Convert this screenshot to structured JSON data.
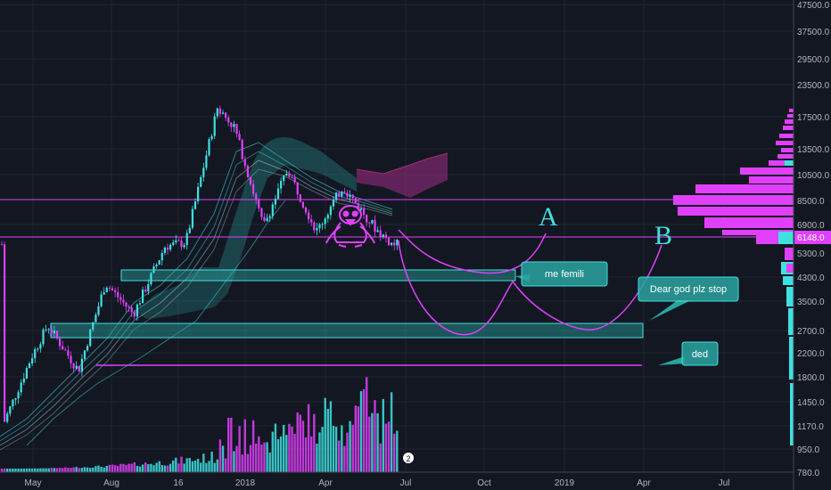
{
  "chart_data": {
    "type": "candlestick",
    "y_scale": "log",
    "ylim": [
      750,
      48000
    ],
    "y_ticks": [
      "47500.0",
      "37500.0",
      "29500.0",
      "23500.0",
      "17500.0",
      "13500.0",
      "10500.0",
      "8500.0",
      "6900.0",
      "5300.0",
      "4300.0",
      "3500.0",
      "2700.0",
      "2200.0",
      "1800.0",
      "1450.0",
      "1170.0",
      "950.0",
      "780.0"
    ],
    "x_ticks": [
      "May",
      "Aug",
      "16",
      "2018",
      "Apr",
      "Jul",
      "Oct",
      "2019",
      "Apr",
      "Jul"
    ],
    "current_price_label": "6148.0",
    "price_path": [
      {
        "t": "2017-04-25",
        "v": 1250
      },
      {
        "t": "2017-05-25",
        "v": 2200
      },
      {
        "t": "2017-06-12",
        "v": 2900
      },
      {
        "t": "2017-07-16",
        "v": 1950
      },
      {
        "t": "2017-08-15",
        "v": 4200
      },
      {
        "t": "2017-09-15",
        "v": 3200
      },
      {
        "t": "2017-10-20",
        "v": 5800
      },
      {
        "t": "2017-11-12",
        "v": 6000
      },
      {
        "t": "2017-12-17",
        "v": 19500
      },
      {
        "t": "2018-01-05",
        "v": 16500
      },
      {
        "t": "2018-02-06",
        "v": 6900
      },
      {
        "t": "2018-03-05",
        "v": 11400
      },
      {
        "t": "2018-04-06",
        "v": 6600
      },
      {
        "t": "2018-05-05",
        "v": 9800
      },
      {
        "t": "2018-06-10",
        "v": 6800
      },
      {
        "t": "2018-06-29",
        "v": 5900
      }
    ],
    "annotations": {
      "letters": [
        "A",
        "B"
      ],
      "callouts": [
        "me femili",
        "Dear god plz stop",
        "ded"
      ],
      "volume_badge": "2"
    },
    "colors": {
      "background": "#131722",
      "up": "#3fe0e0",
      "down": "#e040fb",
      "projection": "#e040fb",
      "zone_fill": "#2aa3a0",
      "callout_fill": "#2aa3a0"
    }
  }
}
